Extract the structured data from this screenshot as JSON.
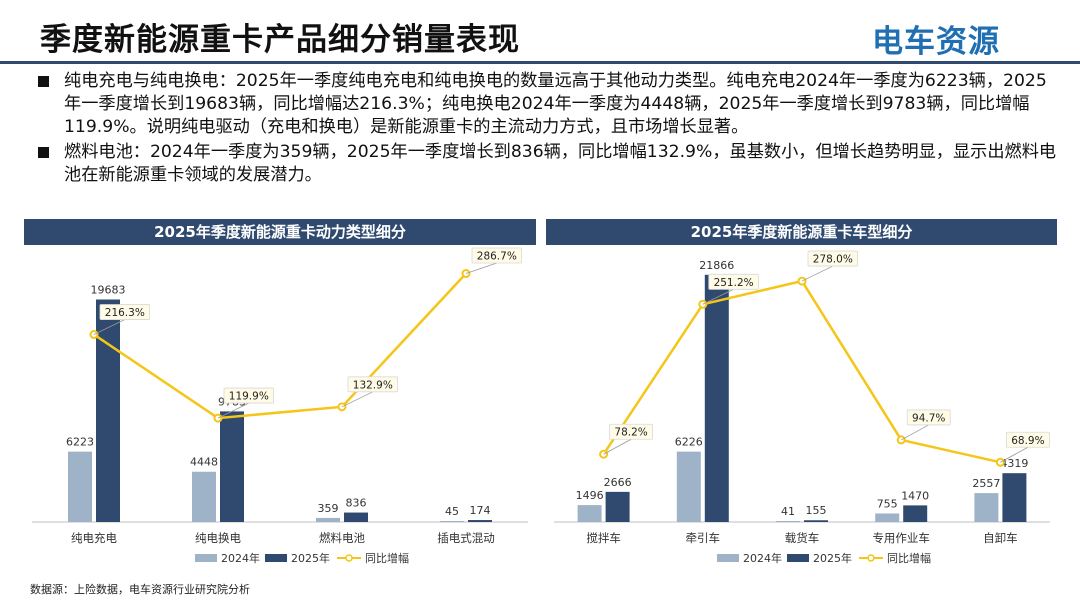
{
  "header": {
    "title": "季度新能源重卡产品细分销量表现",
    "logo_text": "电车资源"
  },
  "bullets": [
    "纯电充电与纯电换电：2025年一季度纯电充电和纯电换电的数量远高于其他动力类型。纯电充电2024年一季度为6223辆，2025年一季度增长到19683辆，同比增幅达216.3%；纯电换电2024年一季度为4448辆，2025年一季度增长到9783辆，同比增幅119.9%。说明纯电驱动（充电和换电）是新能源重卡的主流动力方式，且市场增长显著。",
    "燃料电池：2024年一季度为359辆，2025年一季度增长到836辆，同比增幅132.9%，虽基数小，但增长趋势明显，显示出燃料电池在新能源重卡领域的发展潜力。"
  ],
  "footer": {
    "source": "数据源：上险数据，电车资源行业研究院分析"
  },
  "colors": {
    "bar_2024": "#9fb3c8",
    "bar_2025": "#2f4a6e",
    "line": "#f5c518",
    "header_bg": "#2f4a6e",
    "logo": "#1f6fb2"
  },
  "chart_data": [
    {
      "type": "bar",
      "title": "2025年季度新能源重卡动力类型细分",
      "categories": [
        "纯电充电",
        "纯电换电",
        "燃料电池",
        "插电式混动"
      ],
      "series": [
        {
          "name": "2024年",
          "values": [
            6223,
            4448,
            359,
            45
          ]
        },
        {
          "name": "2025年",
          "values": [
            19683,
            9783,
            836,
            174
          ]
        }
      ],
      "line_series": {
        "name": "同比增幅",
        "values": [
          216.3,
          119.9,
          132.9,
          286.7
        ]
      },
      "value_labels": [
        [
          "6223",
          "4448",
          "359",
          "45"
        ],
        [
          "19683",
          "9783",
          "836",
          "174"
        ]
      ],
      "line_labels": [
        "216.3%",
        "119.9%",
        "132.9%",
        "286.7%"
      ],
      "ylim": [
        0,
        23000
      ],
      "line_ylim": [
        0,
        300
      ],
      "legend_position": "bottom"
    },
    {
      "type": "bar",
      "title": "2025年季度新能源重卡车型细分",
      "categories": [
        "搅拌车",
        "牵引车",
        "载货车",
        "专用作业车",
        "自卸车"
      ],
      "series": [
        {
          "name": "2024年",
          "values": [
            1496,
            6226,
            41,
            755,
            2557
          ]
        },
        {
          "name": "2025年",
          "values": [
            2666,
            21866,
            155,
            1470,
            4319
          ]
        }
      ],
      "line_series": {
        "name": "同比增幅",
        "values": [
          78.2,
          251.2,
          278.0,
          94.7,
          68.9
        ]
      },
      "value_labels": [
        [
          "1496",
          "6226",
          "41",
          "755",
          "2557"
        ],
        [
          "2666",
          "21866",
          "155",
          "1470",
          "4319"
        ]
      ],
      "line_labels": [
        "78.2%",
        "251.2%",
        "278.0%",
        "94.7%",
        "68.9%"
      ],
      "ylim": [
        0,
        23000
      ],
      "line_ylim": [
        0,
        300
      ],
      "legend_position": "bottom"
    }
  ]
}
